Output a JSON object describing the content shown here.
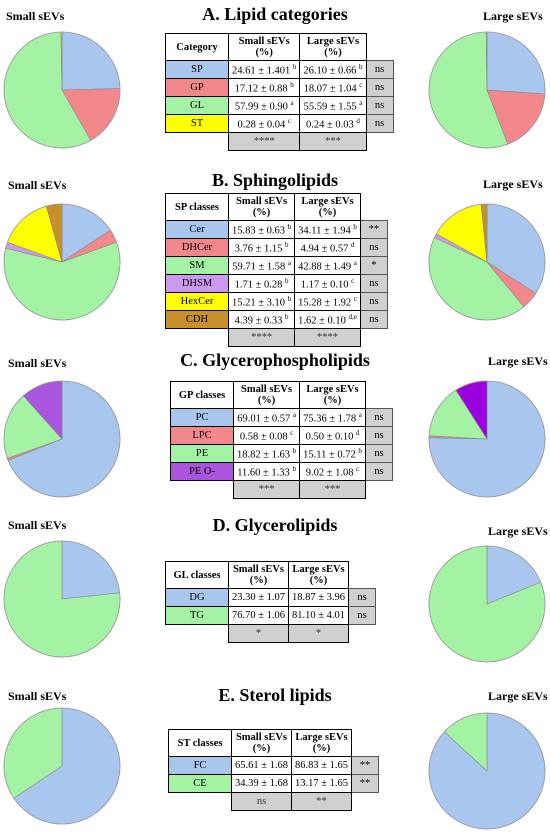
{
  "colors": {
    "SP": "#a9c6ee",
    "GP": "#f2888b",
    "GL": "#a4f2a4",
    "ST": "#ffff00",
    "Cer": "#a9c6ee",
    "DHCer": "#f2888b",
    "SM": "#a4f2a4",
    "DHSM": "#cc99ee",
    "HexCer": "#ffff00",
    "CDH": "#c8902a",
    "PC": "#a9c6ee",
    "LPC": "#f2888b",
    "PE": "#a4f2a4",
    "PEO_small": "#aa55dd",
    "PEO_large": "#9900dd",
    "DG": "#a9c6ee",
    "TG": "#a4f2a4",
    "FC": "#a9c6ee",
    "CE": "#a4f2a4"
  },
  "labels": {
    "small": "Small sEVs",
    "large": "Large sEVs"
  },
  "panels": [
    {
      "title": "A. Lipid categories",
      "header": [
        "Category",
        "Small sEVs\n(%)",
        "Large sEVs\n(%)"
      ],
      "rows": [
        {
          "cls": "SP",
          "small": "24.61 ± 1.401 ",
          "small_sup": "b",
          "large": "26.10 ± 0.66 ",
          "large_sup": "b",
          "sig": "ns"
        },
        {
          "cls": "GP",
          "small": "17.12 ± 0.88 ",
          "small_sup": "b",
          "large": "18.07 ± 1.04 ",
          "large_sup": "c",
          "sig": "ns"
        },
        {
          "cls": "GL",
          "small": "57.99 ± 0.90 ",
          "small_sup": "a",
          "large": "55.59 ± 1.55 ",
          "large_sup": "a",
          "sig": "ns"
        },
        {
          "cls": "ST",
          "small": "0.28 ± 0.04 ",
          "small_sup": "c",
          "large": "0.24 ± 0.03 ",
          "large_sup": "d",
          "sig": "ns"
        }
      ],
      "stats": [
        "****",
        "***"
      ]
    },
    {
      "title": "B. Sphingolipids",
      "header": [
        "SP classes",
        "Small sEVs\n(%)",
        "Large sEVs\n(%)"
      ],
      "rows": [
        {
          "cls": "Cer",
          "small": "15.83 ± 0.63 ",
          "small_sup": "b",
          "large": "34.11 ± 1.94 ",
          "large_sup": "b",
          "sig": "**"
        },
        {
          "cls": "DHCer",
          "small": "3.76 ± 1.15 ",
          "small_sup": "b",
          "large": "4.94 ± 0.57 ",
          "large_sup": "d",
          "sig": "ns"
        },
        {
          "cls": "SM",
          "small": "59.71 ± 1.58 ",
          "small_sup": "a",
          "large": "42.88 ± 1.49 ",
          "large_sup": "a",
          "sig": "*"
        },
        {
          "cls": "DHSM",
          "small": "1.71 ± 0.28 ",
          "small_sup": "b",
          "large": "1.17 ± 0.10 ",
          "large_sup": "c",
          "sig": "ns"
        },
        {
          "cls": "HexCer",
          "small": "15.21 ± 3.10 ",
          "small_sup": "b",
          "large": "15.28 ± 1.92 ",
          "large_sup": "c",
          "sig": "ns"
        },
        {
          "cls": "CDH",
          "small": "4.39 ± 0.33 ",
          "small_sup": "b",
          "large": "1.62 ± 0.10 ",
          "large_sup": "d,e",
          "sig": "ns"
        }
      ],
      "stats": [
        "****",
        "****"
      ]
    },
    {
      "title": "C. Glycerophospholipids",
      "header": [
        "GP classes",
        "Small sEVs\n(%)",
        "Large sEVs\n(%)"
      ],
      "rows": [
        {
          "cls": "PC",
          "small": "69.01 ± 0.57 ",
          "small_sup": "a",
          "large": "75.36 ± 1.78 ",
          "large_sup": "a",
          "sig": "ns"
        },
        {
          "cls": "LPC",
          "small": "0.58 ± 0.08 ",
          "small_sup": "c",
          "large": "0.50 ± 0.10 ",
          "large_sup": "d",
          "sig": "ns"
        },
        {
          "cls": "PE",
          "small": "18.82 ± 1.63 ",
          "small_sup": "b",
          "large": "15.11 ± 0.72 ",
          "large_sup": "b",
          "sig": "ns"
        },
        {
          "cls": "PE O-",
          "small": "11.60 ± 1.33 ",
          "small_sup": "b",
          "large": "9.02 ± 1.08 ",
          "large_sup": "c",
          "sig": "ns"
        }
      ],
      "stats": [
        "***",
        "***"
      ]
    },
    {
      "title": "D. Glycerolipids",
      "header": [
        "GL classes",
        "Small sEVs\n(%)",
        "Large sEVs\n(%)"
      ],
      "rows": [
        {
          "cls": "DG",
          "small": "23.30 ± 1.07",
          "small_sup": "",
          "large": "18.87 ± 3.96",
          "large_sup": "",
          "sig": "ns"
        },
        {
          "cls": "TG",
          "small": "76.70 ± 1.06",
          "small_sup": "",
          "large": "81.10 ± 4.01",
          "large_sup": "",
          "sig": "ns"
        }
      ],
      "stats": [
        "*",
        "*"
      ]
    },
    {
      "title": "E. Sterol lipids",
      "header": [
        "ST classes",
        "Small sEVs\n(%)",
        "Large sEVs\n(%)"
      ],
      "rows": [
        {
          "cls": "FC",
          "small": "65.61 ± 1.68",
          "small_sup": "",
          "large": "86.83 ± 1.65",
          "large_sup": "",
          "sig": "**"
        },
        {
          "cls": "CE",
          "small": "34.39 ± 1.68",
          "small_sup": "",
          "large": "13.17 ± 1.65",
          "large_sup": "",
          "sig": "**"
        }
      ],
      "stats": [
        "ns",
        "**"
      ]
    }
  ],
  "chart_data": [
    {
      "type": "pie",
      "title": "A. Lipid categories",
      "series": [
        {
          "name": "Small sEVs",
          "categories": [
            "SP",
            "GP",
            "GL",
            "ST"
          ],
          "values": [
            24.61,
            17.12,
            57.99,
            0.28
          ]
        },
        {
          "name": "Large sEVs",
          "categories": [
            "SP",
            "GP",
            "GL",
            "ST"
          ],
          "values": [
            26.1,
            18.07,
            55.59,
            0.24
          ]
        }
      ]
    },
    {
      "type": "pie",
      "title": "B. Sphingolipids",
      "series": [
        {
          "name": "Small sEVs",
          "categories": [
            "Cer",
            "DHCer",
            "SM",
            "DHSM",
            "HexCer",
            "CDH"
          ],
          "values": [
            15.83,
            3.76,
            59.71,
            1.71,
            15.21,
            4.39
          ]
        },
        {
          "name": "Large sEVs",
          "categories": [
            "Cer",
            "DHCer",
            "SM",
            "DHSM",
            "HexCer",
            "CDH"
          ],
          "values": [
            34.11,
            4.94,
            42.88,
            1.17,
            15.28,
            1.62
          ]
        }
      ]
    },
    {
      "type": "pie",
      "title": "C. Glycerophospholipids",
      "series": [
        {
          "name": "Small sEVs",
          "categories": [
            "PC",
            "LPC",
            "PE",
            "PE O-"
          ],
          "values": [
            69.01,
            0.58,
            18.82,
            11.6
          ]
        },
        {
          "name": "Large sEVs",
          "categories": [
            "PC",
            "LPC",
            "PE",
            "PE O-"
          ],
          "values": [
            75.36,
            0.5,
            15.11,
            9.02
          ]
        }
      ]
    },
    {
      "type": "pie",
      "title": "D. Glycerolipids",
      "series": [
        {
          "name": "Small sEVs",
          "categories": [
            "DG",
            "TG"
          ],
          "values": [
            23.3,
            76.7
          ]
        },
        {
          "name": "Large sEVs",
          "categories": [
            "DG",
            "TG"
          ],
          "values": [
            18.87,
            81.1
          ]
        }
      ]
    },
    {
      "type": "pie",
      "title": "E. Sterol lipids",
      "series": [
        {
          "name": "Small sEVs",
          "categories": [
            "FC",
            "CE"
          ],
          "values": [
            65.61,
            34.39
          ]
        },
        {
          "name": "Large sEVs",
          "categories": [
            "FC",
            "CE"
          ],
          "values": [
            86.83,
            13.17
          ]
        }
      ]
    }
  ]
}
